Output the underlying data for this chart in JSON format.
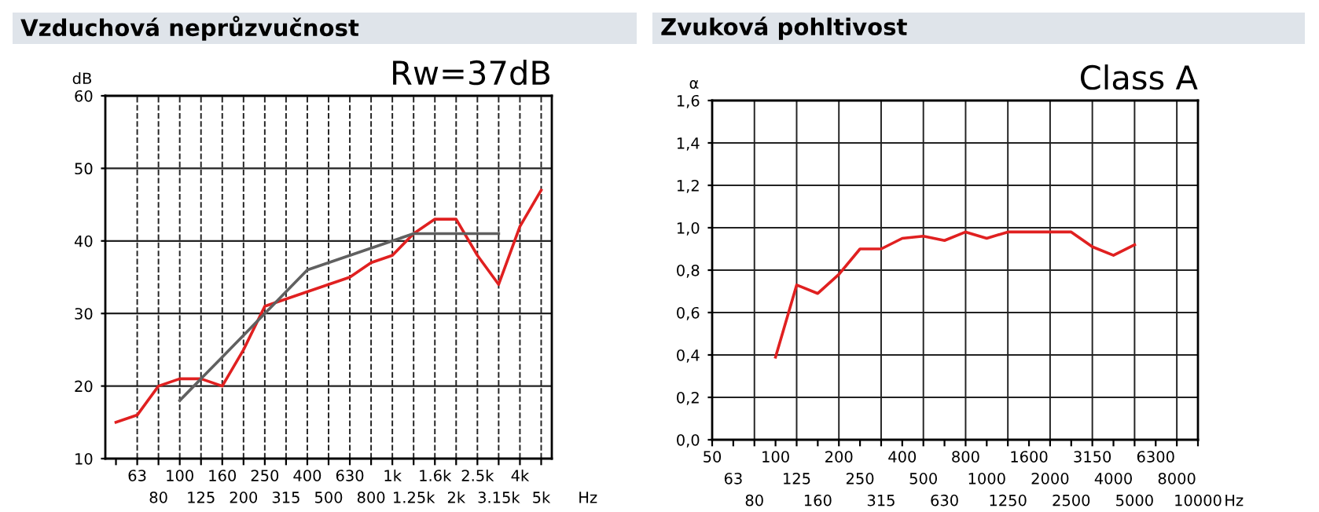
{
  "chart_data": [
    {
      "type": "line",
      "title": "Vzduchová neprůzvučnost",
      "annotations": [
        "Rw=37dB"
      ],
      "ylabel": "dB",
      "xlabel": "Hz",
      "categories": [
        null,
        "63",
        "80",
        "100",
        "125",
        "160",
        "200",
        "250",
        "315",
        "400",
        "500",
        "630",
        "800",
        "1k",
        "1.25k",
        "1.6k",
        "2k",
        "2.5k",
        "3.15k",
        "4k",
        "5k"
      ],
      "series": [
        {
          "color": "#e02020",
          "values": [
            15,
            16,
            20,
            21,
            21,
            20,
            25,
            31,
            32,
            33,
            34,
            35,
            37,
            38,
            41,
            43,
            43,
            38,
            34,
            42,
            47
          ]
        },
        {
          "color": "#606060",
          "values": [
            null,
            null,
            null,
            18,
            21,
            24,
            27,
            30,
            33,
            36,
            37,
            38,
            39,
            40,
            41,
            41,
            41,
            41,
            41,
            null,
            null
          ]
        }
      ],
      "ylim": [
        10,
        60
      ],
      "yticks": [
        10,
        20,
        30,
        40,
        50,
        60
      ],
      "grid": true
    },
    {
      "type": "line",
      "title": "Zvuková pohltivost",
      "annotations": [
        "Class A"
      ],
      "ylabel": "α",
      "xlabel": "Hz",
      "categories": [
        "50",
        "63",
        "80",
        "100",
        "125",
        "160",
        "200",
        "250",
        "315",
        "400",
        "500",
        "630",
        "800",
        "1000",
        "1250",
        "1600",
        "2000",
        "2500",
        "3150",
        "4000",
        "5000",
        "6300",
        "8000",
        "10000"
      ],
      "series": [
        {
          "color": "#e02020",
          "values": [
            null,
            null,
            null,
            0.39,
            0.73,
            0.69,
            0.78,
            0.9,
            0.9,
            0.95,
            0.96,
            0.94,
            0.98,
            0.95,
            0.98,
            0.98,
            0.98,
            0.98,
            0.91,
            0.87,
            0.92,
            null,
            null,
            null
          ]
        }
      ],
      "ylim": [
        0,
        1.6
      ],
      "yticks": [
        {
          "value": 0,
          "label": "0,0"
        },
        {
          "value": 0.2,
          "label": "0,2"
        },
        {
          "value": 0.4,
          "label": "0,4"
        },
        {
          "value": 0.6,
          "label": "0,6"
        },
        {
          "value": 0.8,
          "label": "0,8"
        },
        {
          "value": 1.0,
          "label": "1,0"
        },
        {
          "value": 1.2,
          "label": "1,2"
        },
        {
          "value": 1.4,
          "label": "1,4"
        },
        {
          "value": 1.6,
          "label": "1,6"
        }
      ],
      "grid": true
    }
  ]
}
